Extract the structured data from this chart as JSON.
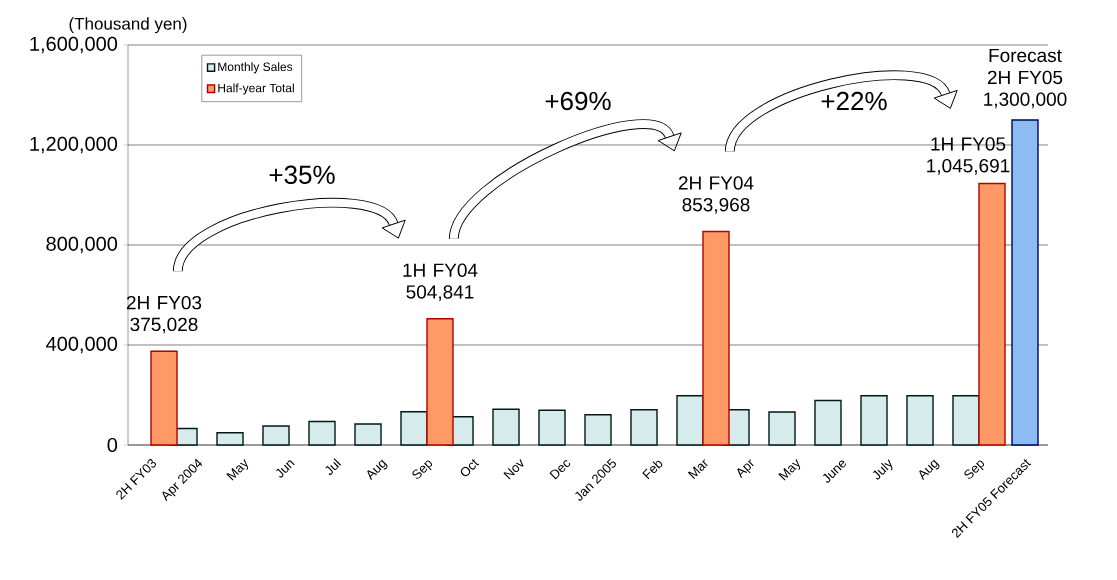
{
  "chart_data": {
    "type": "bar",
    "ylabel": "(Thousand yen)",
    "categories": [
      "2H FY03",
      "Apr 2004",
      "May",
      "Jun",
      "Jul",
      "Aug",
      "Sep",
      "Oct",
      "Nov",
      "Dec",
      "Jan 2005",
      "Feb",
      "Mar",
      "Apr",
      "May",
      "June",
      "July",
      "Aug",
      "Sep",
      "2H FY05 Forecast"
    ],
    "series": [
      {
        "name": "Monthly Sales",
        "color": "#d6ebeb",
        "values": [
          null,
          66000,
          49000,
          76000,
          94000,
          84000,
          133000,
          113000,
          143000,
          139000,
          121000,
          141000,
          197000,
          141000,
          132000,
          178000,
          197000,
          197000,
          197000,
          null
        ]
      },
      {
        "name": "Half-year Total",
        "color": "#ff9966",
        "values": [
          375028,
          null,
          null,
          null,
          null,
          null,
          504841,
          null,
          null,
          null,
          null,
          null,
          853968,
          null,
          null,
          null,
          null,
          null,
          1045691,
          null
        ],
        "value_labels": [
          "375,028",
          null,
          null,
          null,
          null,
          null,
          "504,841",
          null,
          null,
          null,
          null,
          null,
          "853,968",
          null,
          null,
          null,
          null,
          null,
          "1,045,691",
          null
        ]
      },
      {
        "color": "#8cbcf2",
        "values": [
          null,
          null,
          null,
          null,
          null,
          null,
          null,
          null,
          null,
          null,
          null,
          null,
          null,
          null,
          null,
          null,
          null,
          null,
          null,
          1300000
        ],
        "value_labels": [
          null,
          null,
          null,
          null,
          null,
          null,
          null,
          null,
          null,
          null,
          null,
          null,
          null,
          null,
          null,
          null,
          null,
          null,
          null,
          "1,300,000"
        ]
      }
    ],
    "annotations": [
      "2H FY03",
      "1H FY04",
      "2H FY04",
      "1H FY05",
      "Forecast 2H FY05",
      "+35%",
      "+69%",
      "+22%"
    ],
    "ylim": [
      0,
      1600000
    ],
    "yticks": [
      0,
      {
        "value": 400000,
        "label": "400,000"
      },
      {
        "value": 800000,
        "label": "800,000"
      },
      {
        "value": 1200000,
        "label": "1,200,000"
      },
      {
        "value": 1600000,
        "label": "1,600,000"
      }
    ],
    "grid": "y",
    "legend": "top left"
  }
}
